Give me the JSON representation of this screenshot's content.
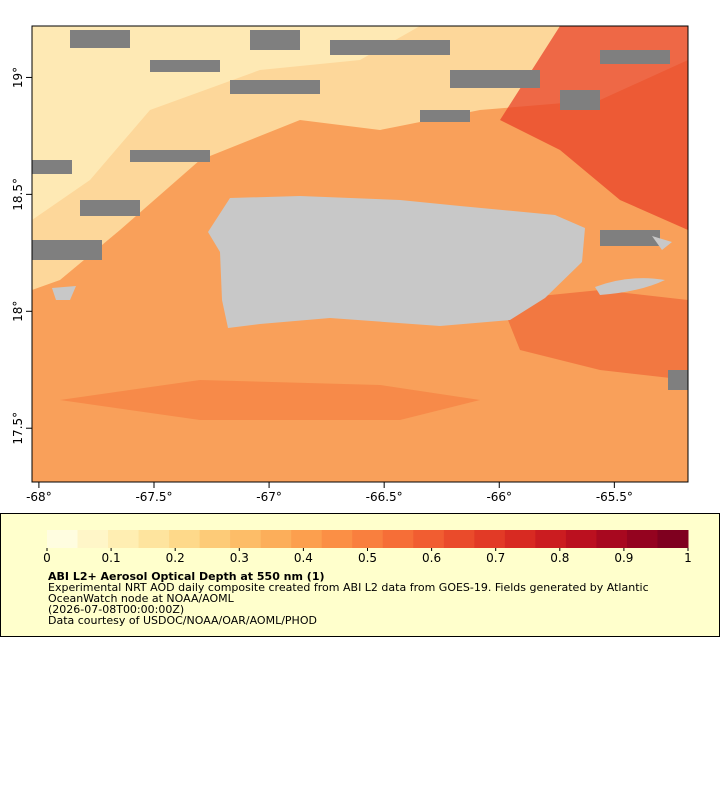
{
  "chart_data": {
    "type": "map",
    "title": "ABI L2+ Aerosol Optical Depth at 550 nm (1)",
    "description": [
      "Experimental NRT AOD daily composite created from ABI L2 data from GOES-19. Fields generated by Atlantic",
      "OceanWatch node at NOAA/AOML",
      "(2026-07-08T00:00:00Z)",
      "Data courtesy of USDOC/NOAA/OAR/AOML/PHOD"
    ],
    "xlim": [
      -68.03,
      -65.18
    ],
    "ylim": [
      17.27,
      19.22
    ],
    "xticks": [
      {
        "value": -68,
        "label": "-68°"
      },
      {
        "value": -67.5,
        "label": "-67.5°"
      },
      {
        "value": -67,
        "label": "-67°"
      },
      {
        "value": -66.5,
        "label": "-66.5°"
      },
      {
        "value": -66,
        "label": "-66°"
      },
      {
        "value": -65.5,
        "label": "-65.5°"
      }
    ],
    "yticks": [
      {
        "value": 17.5,
        "label": "17.5°"
      },
      {
        "value": 18,
        "label": "18°"
      },
      {
        "value": 18.5,
        "label": "18.5°"
      },
      {
        "value": 19,
        "label": "19°"
      }
    ],
    "colorbar": {
      "range": [
        0,
        1
      ],
      "ticks": [
        0,
        0.1,
        0.2,
        0.3,
        0.4,
        0.5,
        0.6,
        0.7,
        0.8,
        0.9,
        1
      ],
      "colors": [
        "#fffde0",
        "#fff6c8",
        "#ffeeb2",
        "#fee49e",
        "#fed98a",
        "#fdcb78",
        "#fdbd68",
        "#fcae5a",
        "#fc9f4e",
        "#fb8f45",
        "#f97f3e",
        "#f66e37",
        "#f15d31",
        "#ea4b2b",
        "#e23a26",
        "#d82a22",
        "#cb1c20",
        "#bb101f",
        "#a8081f",
        "#94031f",
        "#7f001f"
      ]
    }
  }
}
